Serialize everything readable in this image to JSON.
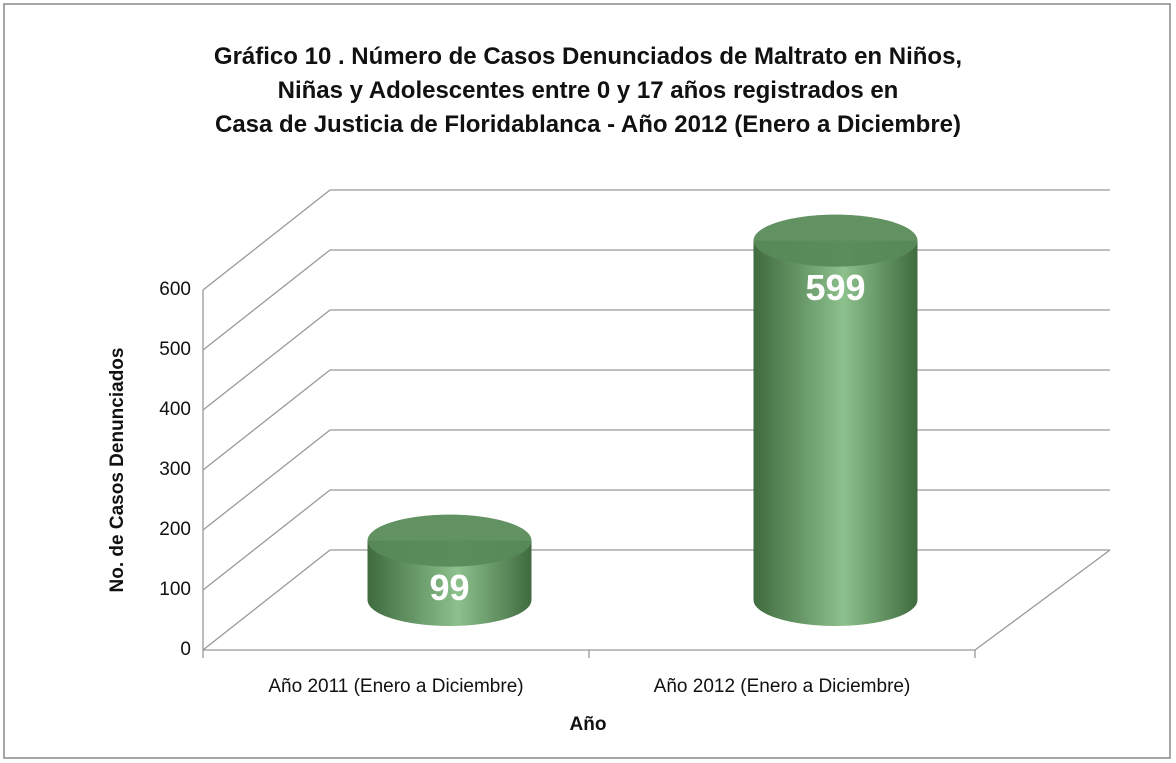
{
  "chart_data": {
    "type": "bar3d",
    "title": "Gráfico 10 . Número de Casos Denunciados de Maltrato en Niños,\nNiñas y Adolescentes entre 0 y 17 años registrados en\nCasa de Justicia de Floridablanca - Año 2012 (Enero a Diciembre)",
    "x_label": "Año",
    "y_label": "No. de Casos Denunciados",
    "categories": [
      "Año 2011 (Enero a Diciembre)",
      "Año 2012 (Enero a Diciembre)"
    ],
    "values": [
      99,
      599
    ],
    "color": "#6a9d6a",
    "ylim": [
      0,
      600
    ],
    "yticks": [
      0,
      100,
      200,
      300,
      400,
      500,
      600
    ],
    "grid": true
  }
}
